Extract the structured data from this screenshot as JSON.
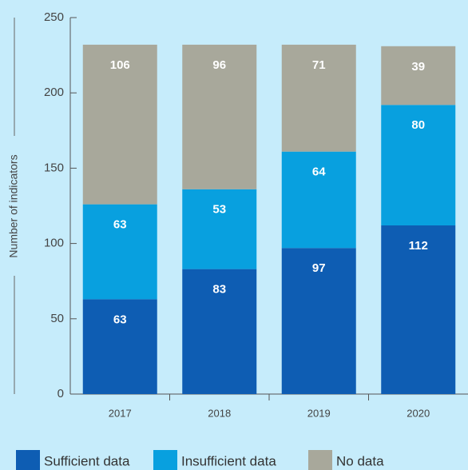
{
  "chart_data": {
    "type": "bar",
    "stacked": true,
    "y_label": "Number of indicators",
    "categories": [
      "2017",
      "2018",
      "2019",
      "2020"
    ],
    "series": [
      {
        "name": "Sufficient data",
        "color": "#0e5db3",
        "values": [
          63,
          83,
          97,
          112
        ]
      },
      {
        "name": "Insufficient data",
        "color": "#08a0df",
        "values": [
          63,
          53,
          64,
          80
        ]
      },
      {
        "name": "No data",
        "color": "#a8a89b",
        "values": [
          106,
          96,
          71,
          39
        ]
      }
    ],
    "ylim": [
      0,
      250
    ],
    "yticks": [
      0,
      50,
      100,
      150,
      200,
      250
    ],
    "legend": "bottom"
  }
}
